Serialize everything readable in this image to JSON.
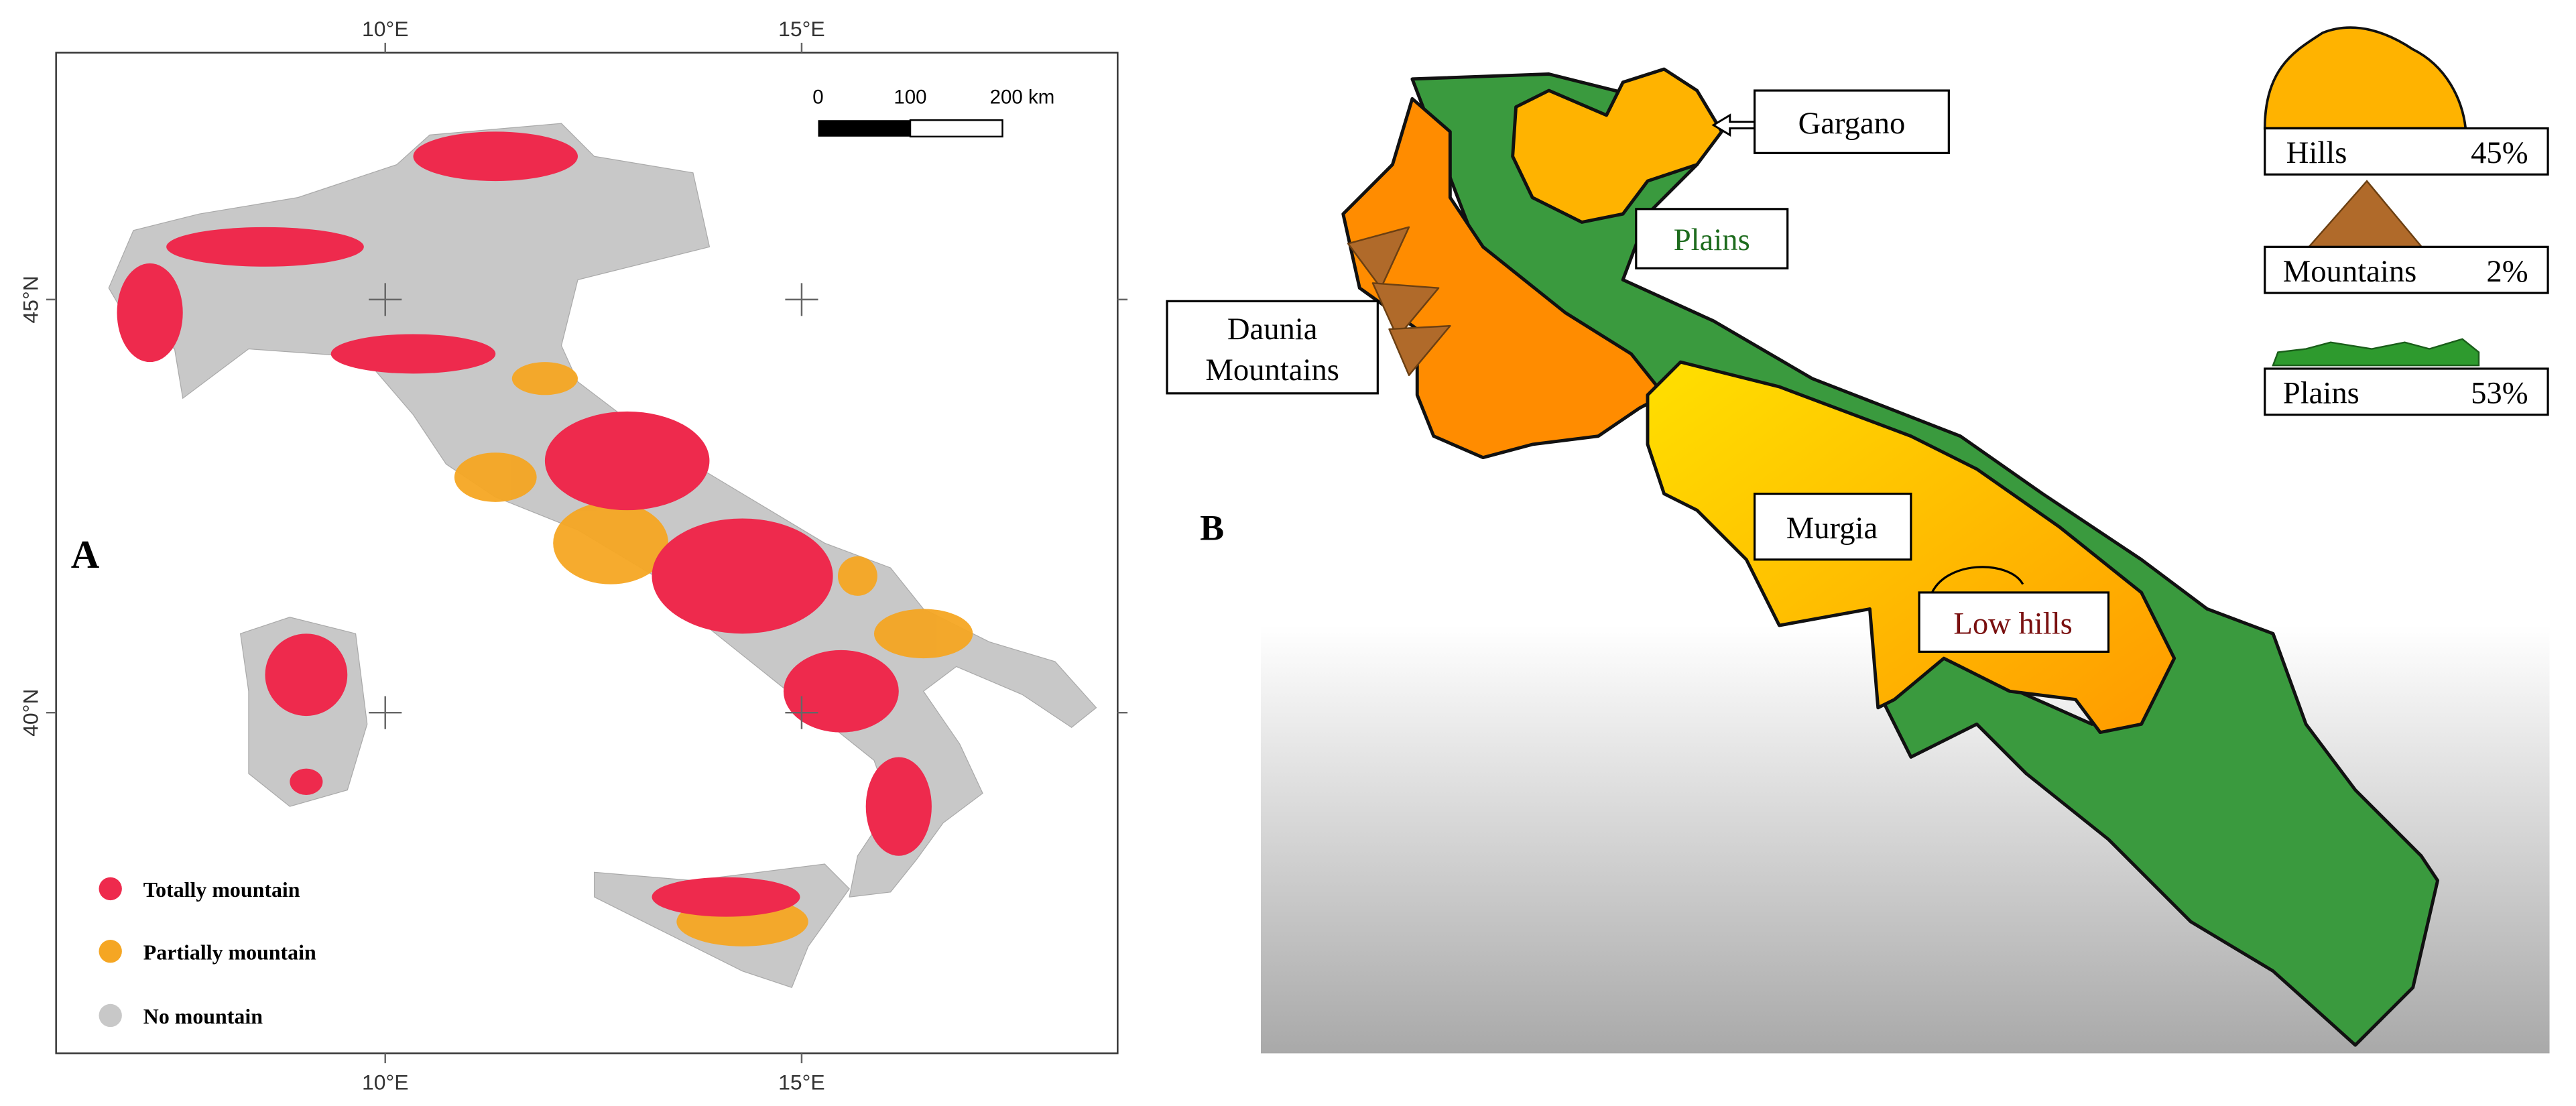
{
  "panel_a": {
    "label": "A",
    "x_axis_labels": [
      "10°E",
      "15°E"
    ],
    "y_axis_labels": [
      "45°N",
      "40°N"
    ],
    "scale_bar": [
      "0",
      "100",
      "200 km"
    ],
    "legend": [
      "Totally mountain",
      "Partially mountain",
      "No mountain"
    ]
  },
  "panel_b": {
    "label": "B",
    "regions": {
      "gargano": "Gargano",
      "plains": "Plains",
      "daunia_mountains": [
        "Daunia",
        "Mountains"
      ],
      "murgia": "Murgia",
      "low_hills": "Low hills"
    },
    "legend": [
      {
        "name": "Hills",
        "share": "45%"
      },
      {
        "name": "Mountains",
        "share": "2%"
      },
      {
        "name": "Plains",
        "share": "53%"
      }
    ]
  }
}
